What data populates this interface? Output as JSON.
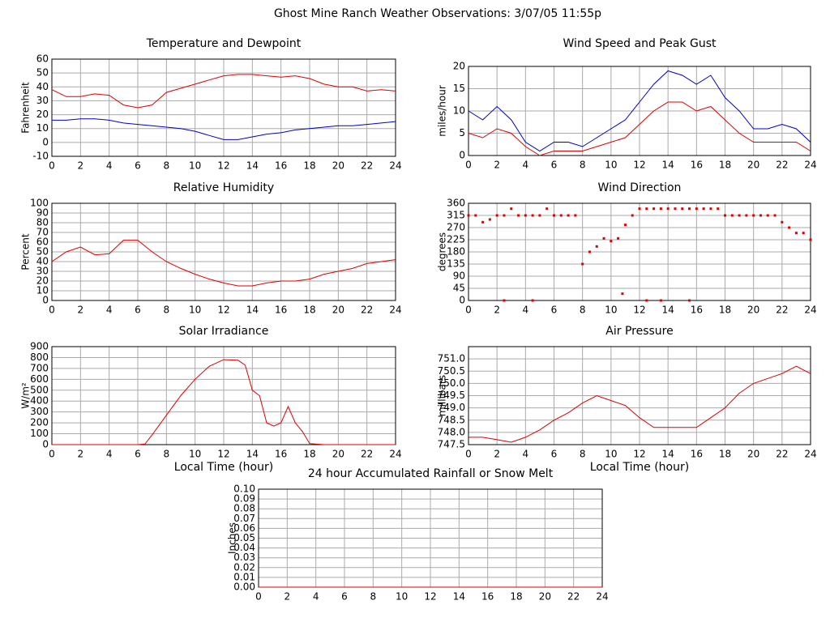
{
  "title": "Ghost Mine Ranch Weather Observations: 3/07/05 11:55p",
  "chart_data": [
    {
      "type": "line",
      "title": "Temperature and Dewpoint",
      "y_label": "Fahrenheit",
      "x": [
        0,
        1,
        2,
        3,
        4,
        5,
        6,
        7,
        8,
        9,
        10,
        11,
        12,
        13,
        14,
        15,
        16,
        17,
        18,
        19,
        20,
        21,
        22,
        23,
        24
      ],
      "series": [
        {
          "color": "#dd0000",
          "values": [
            38,
            33,
            33,
            35,
            34,
            27,
            25,
            27,
            36,
            39,
            42,
            45,
            48,
            49,
            49,
            48,
            47,
            48,
            46,
            42,
            40,
            40,
            37,
            38,
            37
          ]
        },
        {
          "color": "#0000cc",
          "values": [
            16,
            16,
            17,
            17,
            16,
            14,
            13,
            12,
            11,
            10,
            8,
            5,
            2,
            2,
            4,
            6,
            7,
            9,
            10,
            11,
            12,
            12,
            13,
            14,
            15
          ]
        }
      ],
      "xlim": [
        0,
        24
      ],
      "xticks": [
        0,
        2,
        4,
        6,
        8,
        10,
        12,
        14,
        16,
        18,
        20,
        22,
        24
      ],
      "ylim": [
        -10,
        60
      ],
      "yticks": [
        -10,
        0,
        10,
        20,
        30,
        40,
        50,
        60
      ],
      "grid": true
    },
    {
      "type": "line",
      "title": "Wind Speed and Peak Gust",
      "y_label": "miles/hour",
      "x": [
        0,
        1,
        2,
        3,
        4,
        5,
        6,
        7,
        8,
        9,
        10,
        11,
        12,
        13,
        14,
        15,
        16,
        17,
        18,
        19,
        20,
        21,
        22,
        23,
        24
      ],
      "series": [
        {
          "color": "#0000cc",
          "values": [
            10,
            8,
            11,
            8,
            3,
            1,
            3,
            3,
            2,
            4,
            6,
            8,
            12,
            16,
            19,
            18,
            16,
            18,
            13,
            10,
            6,
            6,
            7,
            6,
            3
          ]
        },
        {
          "color": "#dd0000",
          "values": [
            5,
            4,
            6,
            5,
            2,
            0,
            1,
            1,
            1,
            2,
            3,
            4,
            7,
            10,
            12,
            12,
            10,
            11,
            8,
            5,
            3,
            3,
            3,
            3,
            1
          ]
        }
      ],
      "xlim": [
        0,
        24
      ],
      "xticks": [
        0,
        2,
        4,
        6,
        8,
        10,
        12,
        14,
        16,
        18,
        20,
        22,
        24
      ],
      "ylim": [
        0,
        20
      ],
      "yticks": [
        0,
        5,
        10,
        15,
        20
      ],
      "grid": true
    },
    {
      "type": "line",
      "title": "Relative Humidity",
      "y_label": "Percent",
      "x": [
        0,
        1,
        2,
        3,
        4,
        5,
        6,
        7,
        8,
        9,
        10,
        11,
        12,
        13,
        14,
        15,
        16,
        17,
        18,
        19,
        20,
        21,
        22,
        23,
        24
      ],
      "series": [
        {
          "color": "#dd0000",
          "values": [
            40,
            50,
            55,
            47,
            48,
            62,
            62,
            50,
            40,
            33,
            27,
            22,
            18,
            15,
            15,
            18,
            20,
            20,
            22,
            27,
            30,
            33,
            38,
            40,
            42
          ]
        }
      ],
      "xlim": [
        0,
        24
      ],
      "xticks": [
        0,
        2,
        4,
        6,
        8,
        10,
        12,
        14,
        16,
        18,
        20,
        22,
        24
      ],
      "ylim": [
        0,
        100
      ],
      "yticks": [
        0,
        10,
        20,
        30,
        40,
        50,
        60,
        70,
        80,
        90,
        100
      ],
      "grid": true
    },
    {
      "type": "scatter",
      "title": "Wind Direction",
      "y_label": "degrees",
      "x": [
        0,
        0.5,
        1,
        1.5,
        2,
        2.5,
        3,
        3.5,
        4,
        4.5,
        5,
        5.5,
        6,
        6.5,
        7,
        7.5,
        8,
        8.5,
        9,
        9.5,
        10,
        10.5,
        11,
        11.5,
        12,
        12.5,
        13,
        13.5,
        14,
        14.5,
        15,
        15.5,
        16,
        16.5,
        17,
        17.5,
        18,
        18.5,
        19,
        19.5,
        20,
        20.5,
        21,
        21.5,
        22,
        22.5,
        23,
        23.5,
        24,
        2.5,
        4.5,
        12.5,
        13.5,
        15.5,
        10.8
      ],
      "series": [
        {
          "color": "#dd0000",
          "values": [
            315,
            315,
            290,
            300,
            315,
            315,
            340,
            315,
            315,
            315,
            315,
            340,
            315,
            315,
            315,
            315,
            135,
            180,
            200,
            230,
            220,
            230,
            280,
            315,
            340,
            340,
            340,
            340,
            340,
            340,
            340,
            340,
            340,
            340,
            340,
            340,
            315,
            315,
            315,
            315,
            315,
            315,
            315,
            315,
            290,
            270,
            250,
            250,
            225,
            0,
            0,
            0,
            0,
            0,
            25
          ]
        }
      ],
      "xlim": [
        0,
        24
      ],
      "xticks": [
        0,
        2,
        4,
        6,
        8,
        10,
        12,
        14,
        16,
        18,
        20,
        22,
        24
      ],
      "ylim": [
        0,
        360
      ],
      "yticks": [
        0,
        45,
        90,
        135,
        180,
        225,
        270,
        315,
        360
      ],
      "grid": true
    },
    {
      "type": "line",
      "title": "Solar Irradiance",
      "y_label": "W/m²",
      "x_label": "Local Time (hour)",
      "x": [
        0,
        6,
        6.5,
        7,
        8,
        9,
        10,
        11,
        12,
        13,
        13.5,
        14,
        14.5,
        15,
        15.5,
        16,
        16.5,
        17,
        17.5,
        18,
        19,
        24
      ],
      "series": [
        {
          "color": "#dd0000",
          "values": [
            0,
            0,
            5,
            90,
            270,
            450,
            600,
            720,
            780,
            775,
            730,
            500,
            450,
            200,
            170,
            200,
            350,
            200,
            120,
            10,
            0,
            0
          ]
        }
      ],
      "xlim": [
        0,
        24
      ],
      "xticks": [
        0,
        2,
        4,
        6,
        8,
        10,
        12,
        14,
        16,
        18,
        20,
        22,
        24
      ],
      "ylim": [
        0,
        900
      ],
      "yticks": [
        0,
        100,
        200,
        300,
        400,
        500,
        600,
        700,
        800,
        900
      ],
      "grid": true
    },
    {
      "type": "line",
      "title": "Air Pressure",
      "y_label": "millibars",
      "x_label": "Local Time (hour)",
      "x": [
        0,
        1,
        2,
        3,
        4,
        5,
        6,
        7,
        8,
        9,
        10,
        11,
        12,
        13,
        14,
        15,
        16,
        17,
        18,
        19,
        20,
        21,
        22,
        23,
        24
      ],
      "series": [
        {
          "color": "#dd0000",
          "values": [
            747.8,
            747.8,
            747.7,
            747.6,
            747.8,
            748.1,
            748.5,
            748.8,
            749.2,
            749.5,
            749.3,
            749.1,
            748.6,
            748.2,
            748.2,
            748.2,
            748.2,
            748.6,
            749.0,
            749.6,
            750.0,
            750.2,
            750.4,
            750.7,
            750.4
          ]
        }
      ],
      "xlim": [
        0,
        24
      ],
      "xticks": [
        0,
        2,
        4,
        6,
        8,
        10,
        12,
        14,
        16,
        18,
        20,
        22,
        24
      ],
      "ylim": [
        747.5,
        751.5
      ],
      "yticks": [
        747.5,
        {
          "value": 748,
          "label": "748.0"
        },
        748.5,
        {
          "value": 749,
          "label": "749.0"
        },
        749.5,
        {
          "value": 750,
          "label": "750.0"
        },
        750.5,
        {
          "value": 751,
          "label": "751.0"
        }
      ],
      "grid": true
    },
    {
      "type": "line",
      "title": "24 hour Accumulated Rainfall or Snow Melt",
      "y_label": "Inches",
      "x": [
        0,
        24
      ],
      "series": [
        {
          "color": "#dd0000",
          "values": [
            0,
            0
          ]
        }
      ],
      "xlim": [
        0,
        24
      ],
      "xticks": [
        0,
        2,
        4,
        6,
        8,
        10,
        12,
        14,
        16,
        18,
        20,
        22,
        24
      ],
      "ylim": [
        0,
        0.1
      ],
      "yticks": [
        {
          "value": 0,
          "label": "0.00"
        },
        0.01,
        0.02,
        0.03,
        0.04,
        0.05,
        0.06,
        0.07,
        0.08,
        0.09,
        {
          "value": 0.1,
          "label": "0.10"
        }
      ],
      "grid": true
    }
  ]
}
